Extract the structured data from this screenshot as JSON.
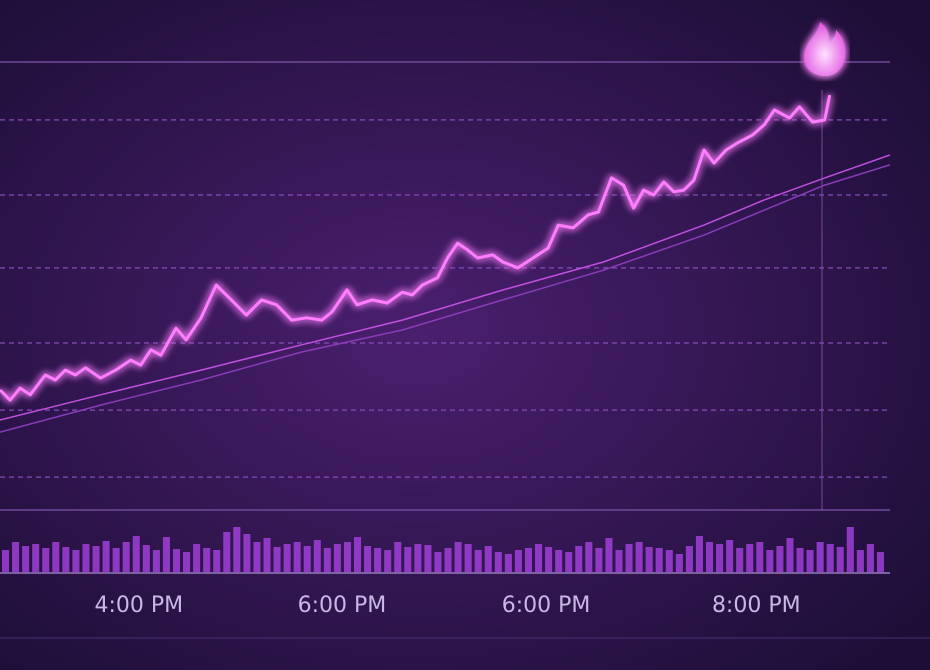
{
  "chart_data": [
    {
      "type": "line",
      "xlim": [
        0,
        88
      ],
      "ylim": [
        0,
        100
      ],
      "xticks": [
        {
          "value": 13.8,
          "label": "4:00 PM"
        },
        {
          "value": 34,
          "label": "6:00 PM"
        },
        {
          "value": 54.3,
          "label": "6:00 PM"
        },
        {
          "value": 75.2,
          "label": "8:00 PM"
        }
      ],
      "gridlines": [
        86.7,
        70,
        53.8,
        37.1,
        22.2,
        7.3
      ],
      "series": [
        {
          "color": "#ff7dff",
          "x": [
            0,
            1,
            2,
            3,
            4.5,
            5.5,
            6.5,
            7.5,
            8.5,
            10,
            11.5,
            13,
            14,
            15,
            16,
            17.5,
            18.5,
            20,
            21.5,
            23,
            24.5,
            26,
            27.5,
            29,
            30.5,
            32,
            33,
            34.5,
            35.5,
            37,
            38.5,
            40,
            41,
            42,
            43.5,
            44.5,
            45.5,
            46.5,
            47.5,
            49,
            50,
            51.5,
            53,
            54.5,
            55.5,
            57,
            58.5,
            59.5,
            60.8,
            62,
            63,
            64,
            65,
            66,
            67,
            68,
            69,
            70,
            71,
            72.2,
            73.5,
            74.8,
            76,
            77,
            78.5,
            79.5,
            80.8,
            82,
            82.5
          ],
          "values": [
            26.7,
            24.4,
            27.1,
            25.6,
            30,
            28.9,
            31.1,
            30,
            31.6,
            29.3,
            31.1,
            33.3,
            32.2,
            35.6,
            34.4,
            40.4,
            37.8,
            42.7,
            50,
            46.7,
            43.3,
            46.7,
            45.6,
            42.2,
            42.7,
            42.2,
            44,
            48.9,
            45.6,
            46.7,
            46,
            48.4,
            47.8,
            50,
            51.6,
            56,
            59.3,
            57.8,
            56,
            56.7,
            55.1,
            53.8,
            56,
            58.2,
            63.3,
            62.7,
            65.6,
            66.2,
            73.8,
            72.2,
            67.1,
            71.1,
            70,
            72.9,
            70.7,
            71.1,
            73.3,
            80,
            77.1,
            80,
            81.8,
            83.3,
            85.6,
            88.9,
            87.1,
            89.6,
            86.2,
            86.7,
            92.2
          ]
        },
        {
          "color": "#c04fe0",
          "x": [
            0,
            10,
            20,
            30,
            40,
            50,
            60,
            70,
            76,
            82,
            88.5
          ],
          "values": [
            20,
            25.6,
            31.1,
            36.7,
            42.2,
            48.9,
            55.1,
            63.3,
            68.9,
            73.8,
            78.9
          ]
        },
        {
          "color": "#8a3bb8",
          "x": [
            0,
            10,
            20,
            30,
            40,
            50,
            60,
            70,
            82,
            88.5
          ],
          "values": [
            17.3,
            23.3,
            28.9,
            35.1,
            40,
            46.7,
            53.3,
            61.1,
            72.2,
            76.7
          ]
        }
      ]
    },
    {
      "type": "bar",
      "ylim": [
        0,
        60
      ],
      "color": "#a040d8",
      "values": [
        22,
        30,
        26,
        28,
        24,
        30,
        25,
        22,
        28,
        26,
        31,
        24,
        30,
        36,
        27,
        22,
        35,
        23,
        20,
        28,
        24,
        22,
        40,
        45,
        38,
        30,
        34,
        25,
        28,
        30,
        26,
        32,
        24,
        28,
        30,
        35,
        26,
        24,
        22,
        30,
        25,
        28,
        27,
        20,
        24,
        30,
        28,
        22,
        26,
        20,
        18,
        22,
        24,
        28,
        25,
        22,
        20,
        26,
        30,
        24,
        34,
        22,
        28,
        30,
        25,
        24,
        22,
        18,
        26,
        36,
        30,
        28,
        32,
        24,
        28,
        30,
        22,
        26,
        34,
        24,
        22,
        30,
        28,
        25,
        45,
        22,
        28,
        20
      ]
    }
  ]
}
